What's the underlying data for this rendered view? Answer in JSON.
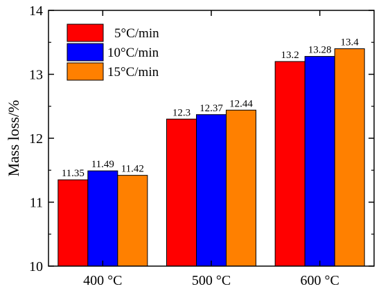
{
  "chart_data": {
    "type": "bar",
    "categories": [
      "400 °C",
      "500 °C",
      "600 °C"
    ],
    "series": [
      {
        "name": "5°C/min",
        "color": "#ff0000",
        "values": [
          11.35,
          12.3,
          13.2
        ],
        "labels": [
          "11.35",
          "12.3",
          "13.2"
        ]
      },
      {
        "name": "10°C/min",
        "color": "#0000ff",
        "values": [
          11.49,
          12.37,
          13.28
        ],
        "labels": [
          "11.49",
          "12.37",
          "13.28"
        ]
      },
      {
        "name": "15°C/min",
        "color": "#ff8000",
        "values": [
          11.42,
          12.44,
          13.4
        ],
        "labels": [
          "11.42",
          "12.44",
          "13.4"
        ]
      }
    ],
    "ylabel": "Mass loss/%",
    "xlabel": "",
    "ylim": [
      10,
      14
    ],
    "yticks": [
      10,
      11,
      12,
      13,
      14
    ],
    "grid": false,
    "legend_position": "top-left"
  }
}
